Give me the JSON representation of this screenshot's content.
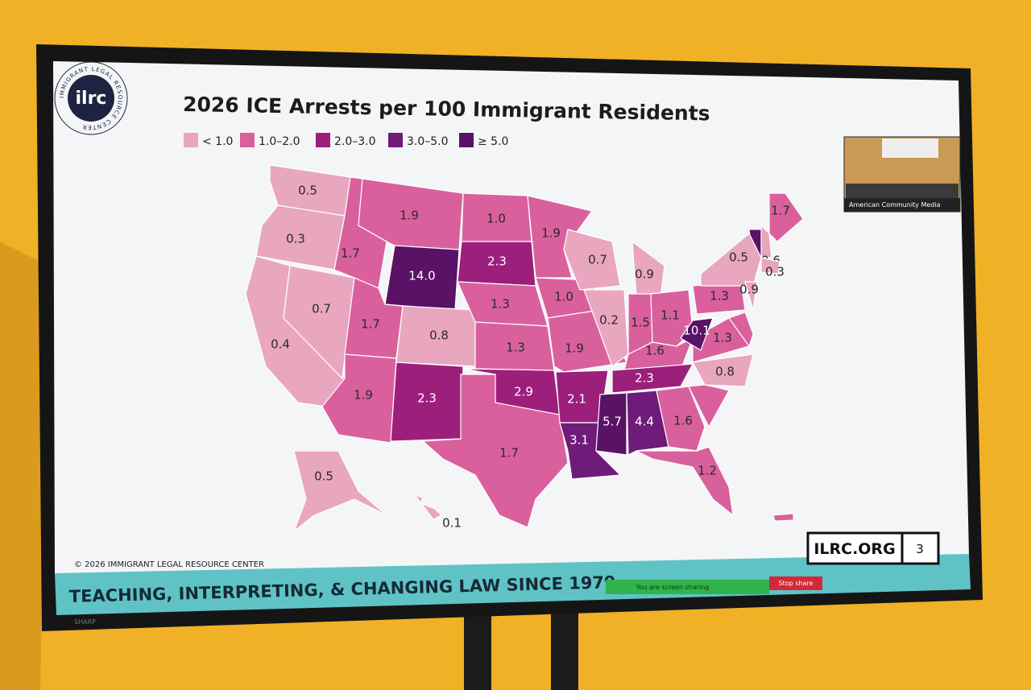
{
  "slide": {
    "logo": "ilrc",
    "logo_ring": "IMMIGRANT LEGAL RESOURCE CENTER",
    "title": "2026 ICE Arrests per 100 Immigrant Residents",
    "legend": [
      {
        "label": "< 1.0",
        "color": "#e9a6bf"
      },
      {
        "label": "1.0–2.0",
        "color": "#d9609d"
      },
      {
        "label": "2.0–3.0",
        "color": "#9c1f7c"
      },
      {
        "label": "3.0–5.0",
        "color": "#6f1b7a"
      },
      {
        "label": "≥ 5.0",
        "color": "#5a1266"
      }
    ],
    "regions": [
      {
        "label": "0.5",
        "color": "#e9a6bf"
      },
      {
        "label": "0.3",
        "color": "#e9a6bf"
      },
      {
        "label": "0.4",
        "color": "#e9a6bf"
      },
      {
        "label": "0.7",
        "color": "#e9a6bf"
      },
      {
        "label": "1.7",
        "color": "#d9609d"
      },
      {
        "label": "1.9",
        "color": "#d9609d"
      },
      {
        "label": "14.0",
        "color": "#5a1266"
      },
      {
        "label": "1.7",
        "color": "#d9609d"
      },
      {
        "label": "0.8",
        "color": "#e9a6bf"
      },
      {
        "label": "1.9",
        "color": "#d9609d"
      },
      {
        "label": "2.3",
        "color": "#9c1f7c"
      },
      {
        "label": "1.0",
        "color": "#d9609d"
      },
      {
        "label": "2.3",
        "color": "#9c1f7c"
      },
      {
        "label": "1.3",
        "color": "#d9609d"
      },
      {
        "label": "1.3",
        "color": "#d9609d"
      },
      {
        "label": "2.9",
        "color": "#9c1f7c"
      },
      {
        "label": "1.7",
        "color": "#d9609d"
      },
      {
        "label": "1.9",
        "color": "#d9609d"
      },
      {
        "label": "1.0",
        "color": "#d9609d"
      },
      {
        "label": "1.9",
        "color": "#d9609d"
      },
      {
        "label": "2.1",
        "color": "#9c1f7c"
      },
      {
        "label": "3.1",
        "color": "#6f1b7a"
      },
      {
        "label": "0.7",
        "color": "#e9a6bf"
      },
      {
        "label": "0.2",
        "color": "#e9a6bf"
      },
      {
        "label": "0.9",
        "color": "#e9a6bf"
      },
      {
        "label": "1.5",
        "color": "#d9609d"
      },
      {
        "label": "1.1",
        "color": "#d9609d"
      },
      {
        "label": "1.6",
        "color": "#d9609d"
      },
      {
        "label": "2.3",
        "color": "#9c1f7c"
      },
      {
        "label": "5.7",
        "color": "#5a1266"
      },
      {
        "label": "4.4",
        "color": "#6f1b7a"
      },
      {
        "label": "1.6",
        "color": "#d9609d"
      },
      {
        "label": "1.2",
        "color": "#d9609d"
      },
      {
        "label": "0.8",
        "color": "#e9a6bf"
      },
      {
        "label": "1.3",
        "color": "#d9609d"
      },
      {
        "label": "10.1",
        "color": "#5a1266"
      },
      {
        "label": "1.3",
        "color": "#d9609d"
      },
      {
        "label": "0.5",
        "color": "#e9a6bf"
      },
      {
        "label": "0.9",
        "color": "#e9a6bf"
      },
      {
        "label": "0.6",
        "color": "#e9a6bf"
      },
      {
        "label": "0.3",
        "color": "#e9a6bf"
      },
      {
        "label": "1.7",
        "color": "#d9609d"
      },
      {
        "label": "0.5",
        "color": "#e9a6bf"
      },
      {
        "label": "0.1",
        "color": "#e9a6bf"
      }
    ],
    "copyright": "© 2026 IMMIGRANT LEGAL RESOURCE CENTER",
    "tagline": "TEACHING, INTERPRETING, & CHANGING LAW SINCE 1979",
    "website": "ILRC.ORG",
    "page": "3"
  },
  "video": {
    "caption": "American Community Media"
  },
  "sharing_bar": {
    "status": "You are screen sharing",
    "button": "Stop share"
  },
  "tv": {
    "brand": "SHARP"
  }
}
